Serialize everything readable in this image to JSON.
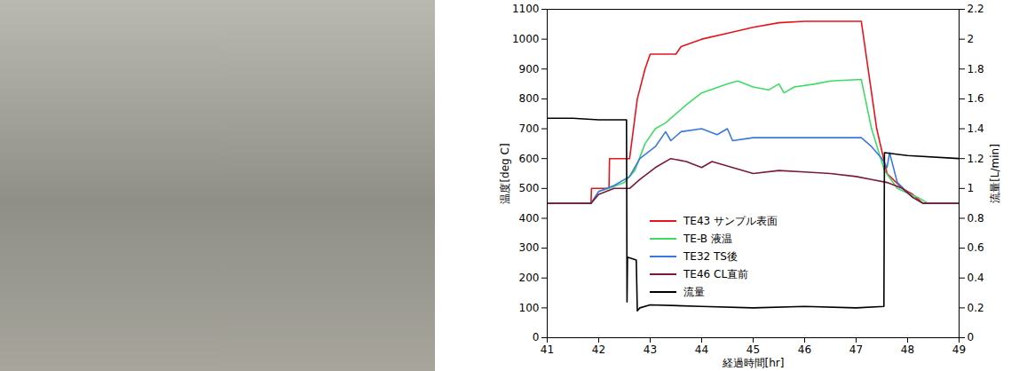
{
  "chart_data": {
    "type": "line",
    "x_label": "経過時間[hr]",
    "y_label": "温度[deg C]",
    "y2_label": "流量[L/min]",
    "xlim": [
      41,
      49
    ],
    "xticks": [
      41,
      42,
      43,
      44,
      45,
      46,
      47,
      48,
      49
    ],
    "ylim": [
      0,
      1100
    ],
    "yticks": [
      0,
      100,
      200,
      300,
      400,
      500,
      600,
      700,
      800,
      900,
      1000,
      1100
    ],
    "y2lim": [
      0,
      2.2
    ],
    "y2ticks": [
      0,
      0.2,
      0.4,
      0.6,
      0.8,
      1,
      1.2,
      1.4,
      1.6,
      1.8,
      2,
      2.2
    ],
    "grid": false,
    "legend": "bottom",
    "series": [
      {
        "name": "TE43 サンプル表面",
        "color": "#e8141b",
        "line_style": "solid",
        "x": [
          41,
          41.85,
          41.86,
          42.2,
          42.21,
          42.6,
          42.75,
          42.9,
          43.0,
          43.5,
          43.6,
          44.0,
          44.5,
          45.0,
          45.5,
          46.0,
          47.1,
          47.4,
          47.6,
          47.9,
          48.1,
          48.3,
          49
        ],
        "values": [
          450,
          450,
          500,
          500,
          600,
          600,
          800,
          900,
          950,
          950,
          975,
          1000,
          1020,
          1040,
          1055,
          1060,
          1060,
          700,
          550,
          500,
          480,
          450,
          450
        ]
      },
      {
        "name": "TE-B 液温",
        "color": "#3ddc64",
        "line_style": "solid",
        "x": [
          41,
          41.85,
          42.0,
          42.2,
          42.5,
          42.7,
          42.9,
          43.1,
          43.3,
          43.7,
          44.0,
          44.5,
          44.7,
          45.0,
          45.3,
          45.5,
          45.6,
          45.8,
          46.2,
          46.5,
          47.1,
          47.3,
          47.55,
          47.8,
          48.2,
          48.4,
          49
        ],
        "values": [
          450,
          450,
          490,
          500,
          520,
          560,
          650,
          700,
          720,
          780,
          820,
          850,
          860,
          840,
          830,
          850,
          820,
          840,
          850,
          860,
          865,
          700,
          560,
          500,
          470,
          450,
          450
        ]
      },
      {
        "name": "TE32 TS後",
        "color": "#3a78e0",
        "line_style": "solid",
        "x": [
          41,
          41.85,
          42.0,
          42.3,
          42.6,
          42.8,
          43.1,
          43.3,
          43.4,
          43.6,
          44.0,
          44.3,
          44.5,
          44.6,
          45.0,
          46.0,
          47.1,
          47.3,
          47.5,
          47.6,
          47.65,
          47.8,
          48.1,
          48.3,
          49
        ],
        "values": [
          450,
          450,
          490,
          510,
          540,
          600,
          640,
          690,
          660,
          690,
          700,
          680,
          700,
          660,
          670,
          670,
          670,
          640,
          600,
          570,
          620,
          520,
          470,
          450,
          450
        ]
      },
      {
        "name": "TE46 CL直前",
        "color": "#7a1a3a",
        "line_style": "solid",
        "x": [
          41,
          41.85,
          42.0,
          42.3,
          42.6,
          42.8,
          43.1,
          43.4,
          43.7,
          44.0,
          44.2,
          44.6,
          45.0,
          45.5,
          46.0,
          46.5,
          47.0,
          47.3,
          47.6,
          47.9,
          48.1,
          48.3,
          49
        ],
        "values": [
          450,
          450,
          480,
          500,
          500,
          530,
          570,
          600,
          590,
          570,
          590,
          570,
          550,
          560,
          555,
          550,
          540,
          530,
          520,
          500,
          470,
          450,
          450
        ]
      },
      {
        "name": "流量",
        "color": "#000000",
        "line_style": "solid",
        "axis": "y2",
        "x": [
          41,
          41.5,
          42.0,
          42.54,
          42.55,
          42.56,
          42.73,
          42.75,
          42.8,
          43.0,
          44.0,
          45.0,
          46.0,
          47.0,
          47.54,
          47.55,
          48.0,
          49
        ],
        "values": [
          1.47,
          1.47,
          1.46,
          1.46,
          0.24,
          0.54,
          0.52,
          0.18,
          0.2,
          0.22,
          0.21,
          0.2,
          0.21,
          0.2,
          0.21,
          1.24,
          1.22,
          1.2
        ]
      }
    ]
  }
}
